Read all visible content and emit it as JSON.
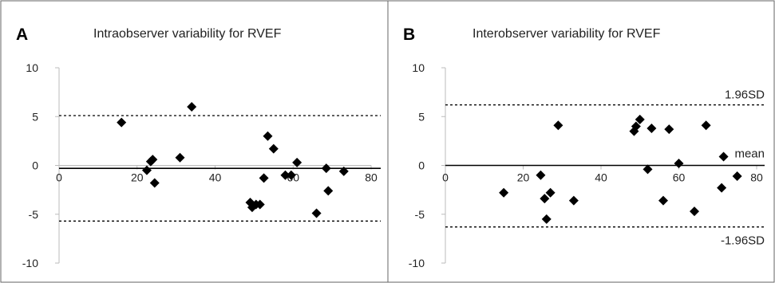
{
  "chart_data": [
    {
      "type": "scatter",
      "panel_label": "A",
      "title": "Intraobserver variability for RVEF",
      "xlim": [
        0,
        80
      ],
      "ylim": [
        -10,
        10
      ],
      "x_ticks": [
        0,
        20,
        40,
        60,
        80
      ],
      "y_ticks": [
        -10,
        -5,
        0,
        5,
        10
      ],
      "x_tick_labels": [
        "0",
        "20",
        "40",
        "60",
        "80"
      ],
      "y_tick_labels": [
        "-10",
        "-5",
        "0",
        "5",
        "10"
      ],
      "mean": -0.3,
      "upper_limit": 5.1,
      "lower_limit": -5.7,
      "line_labels": {
        "upper": "",
        "mean": "",
        "lower": ""
      },
      "points": [
        {
          "x": 16,
          "y": 4.4
        },
        {
          "x": 34,
          "y": 6.0
        },
        {
          "x": 31,
          "y": 0.8
        },
        {
          "x": 22.5,
          "y": -0.5
        },
        {
          "x": 23.5,
          "y": 0.4
        },
        {
          "x": 24,
          "y": 0.6
        },
        {
          "x": 24.5,
          "y": -1.8
        },
        {
          "x": 52.5,
          "y": -1.3
        },
        {
          "x": 53.5,
          "y": 3.0
        },
        {
          "x": 55,
          "y": 1.7
        },
        {
          "x": 49,
          "y": -3.8
        },
        {
          "x": 49.5,
          "y": -4.3
        },
        {
          "x": 50.5,
          "y": -4.0
        },
        {
          "x": 51.5,
          "y": -4.0
        },
        {
          "x": 58,
          "y": -1.0
        },
        {
          "x": 59.5,
          "y": -1.0
        },
        {
          "x": 61,
          "y": 0.3
        },
        {
          "x": 66,
          "y": -4.9
        },
        {
          "x": 68.5,
          "y": -0.3
        },
        {
          "x": 69,
          "y": -2.6
        },
        {
          "x": 73,
          "y": -0.6
        }
      ]
    },
    {
      "type": "scatter",
      "panel_label": "B",
      "title": "Interobserver variability for RVEF",
      "xlim": [
        0,
        80
      ],
      "ylim": [
        -10,
        10
      ],
      "x_ticks": [
        0,
        20,
        40,
        60,
        80
      ],
      "y_ticks": [
        -10,
        -5,
        0,
        5,
        10
      ],
      "x_tick_labels": [
        "0",
        "20",
        "40",
        "60",
        "80"
      ],
      "y_tick_labels": [
        "-10",
        "-5",
        "0",
        "5",
        "10"
      ],
      "mean": 0,
      "upper_limit": 6.2,
      "lower_limit": -6.3,
      "line_labels": {
        "upper": "1.96SD",
        "mean": "mean",
        "lower": "-1.96SD"
      },
      "points": [
        {
          "x": 15,
          "y": -2.8
        },
        {
          "x": 24.5,
          "y": -1.0
        },
        {
          "x": 25.5,
          "y": -3.4
        },
        {
          "x": 26,
          "y": -5.5
        },
        {
          "x": 27,
          "y": -2.8
        },
        {
          "x": 29,
          "y": 4.1
        },
        {
          "x": 33,
          "y": -3.6
        },
        {
          "x": 48.5,
          "y": 3.5
        },
        {
          "x": 49,
          "y": 4.0
        },
        {
          "x": 50,
          "y": 4.7
        },
        {
          "x": 52,
          "y": -0.4
        },
        {
          "x": 53,
          "y": 3.8
        },
        {
          "x": 56,
          "y": -3.6
        },
        {
          "x": 57.5,
          "y": 3.7
        },
        {
          "x": 60,
          "y": 0.2
        },
        {
          "x": 64,
          "y": -4.7
        },
        {
          "x": 67,
          "y": 4.1
        },
        {
          "x": 71,
          "y": -2.3
        },
        {
          "x": 71.5,
          "y": 0.9
        },
        {
          "x": 75,
          "y": -1.1
        }
      ]
    }
  ]
}
